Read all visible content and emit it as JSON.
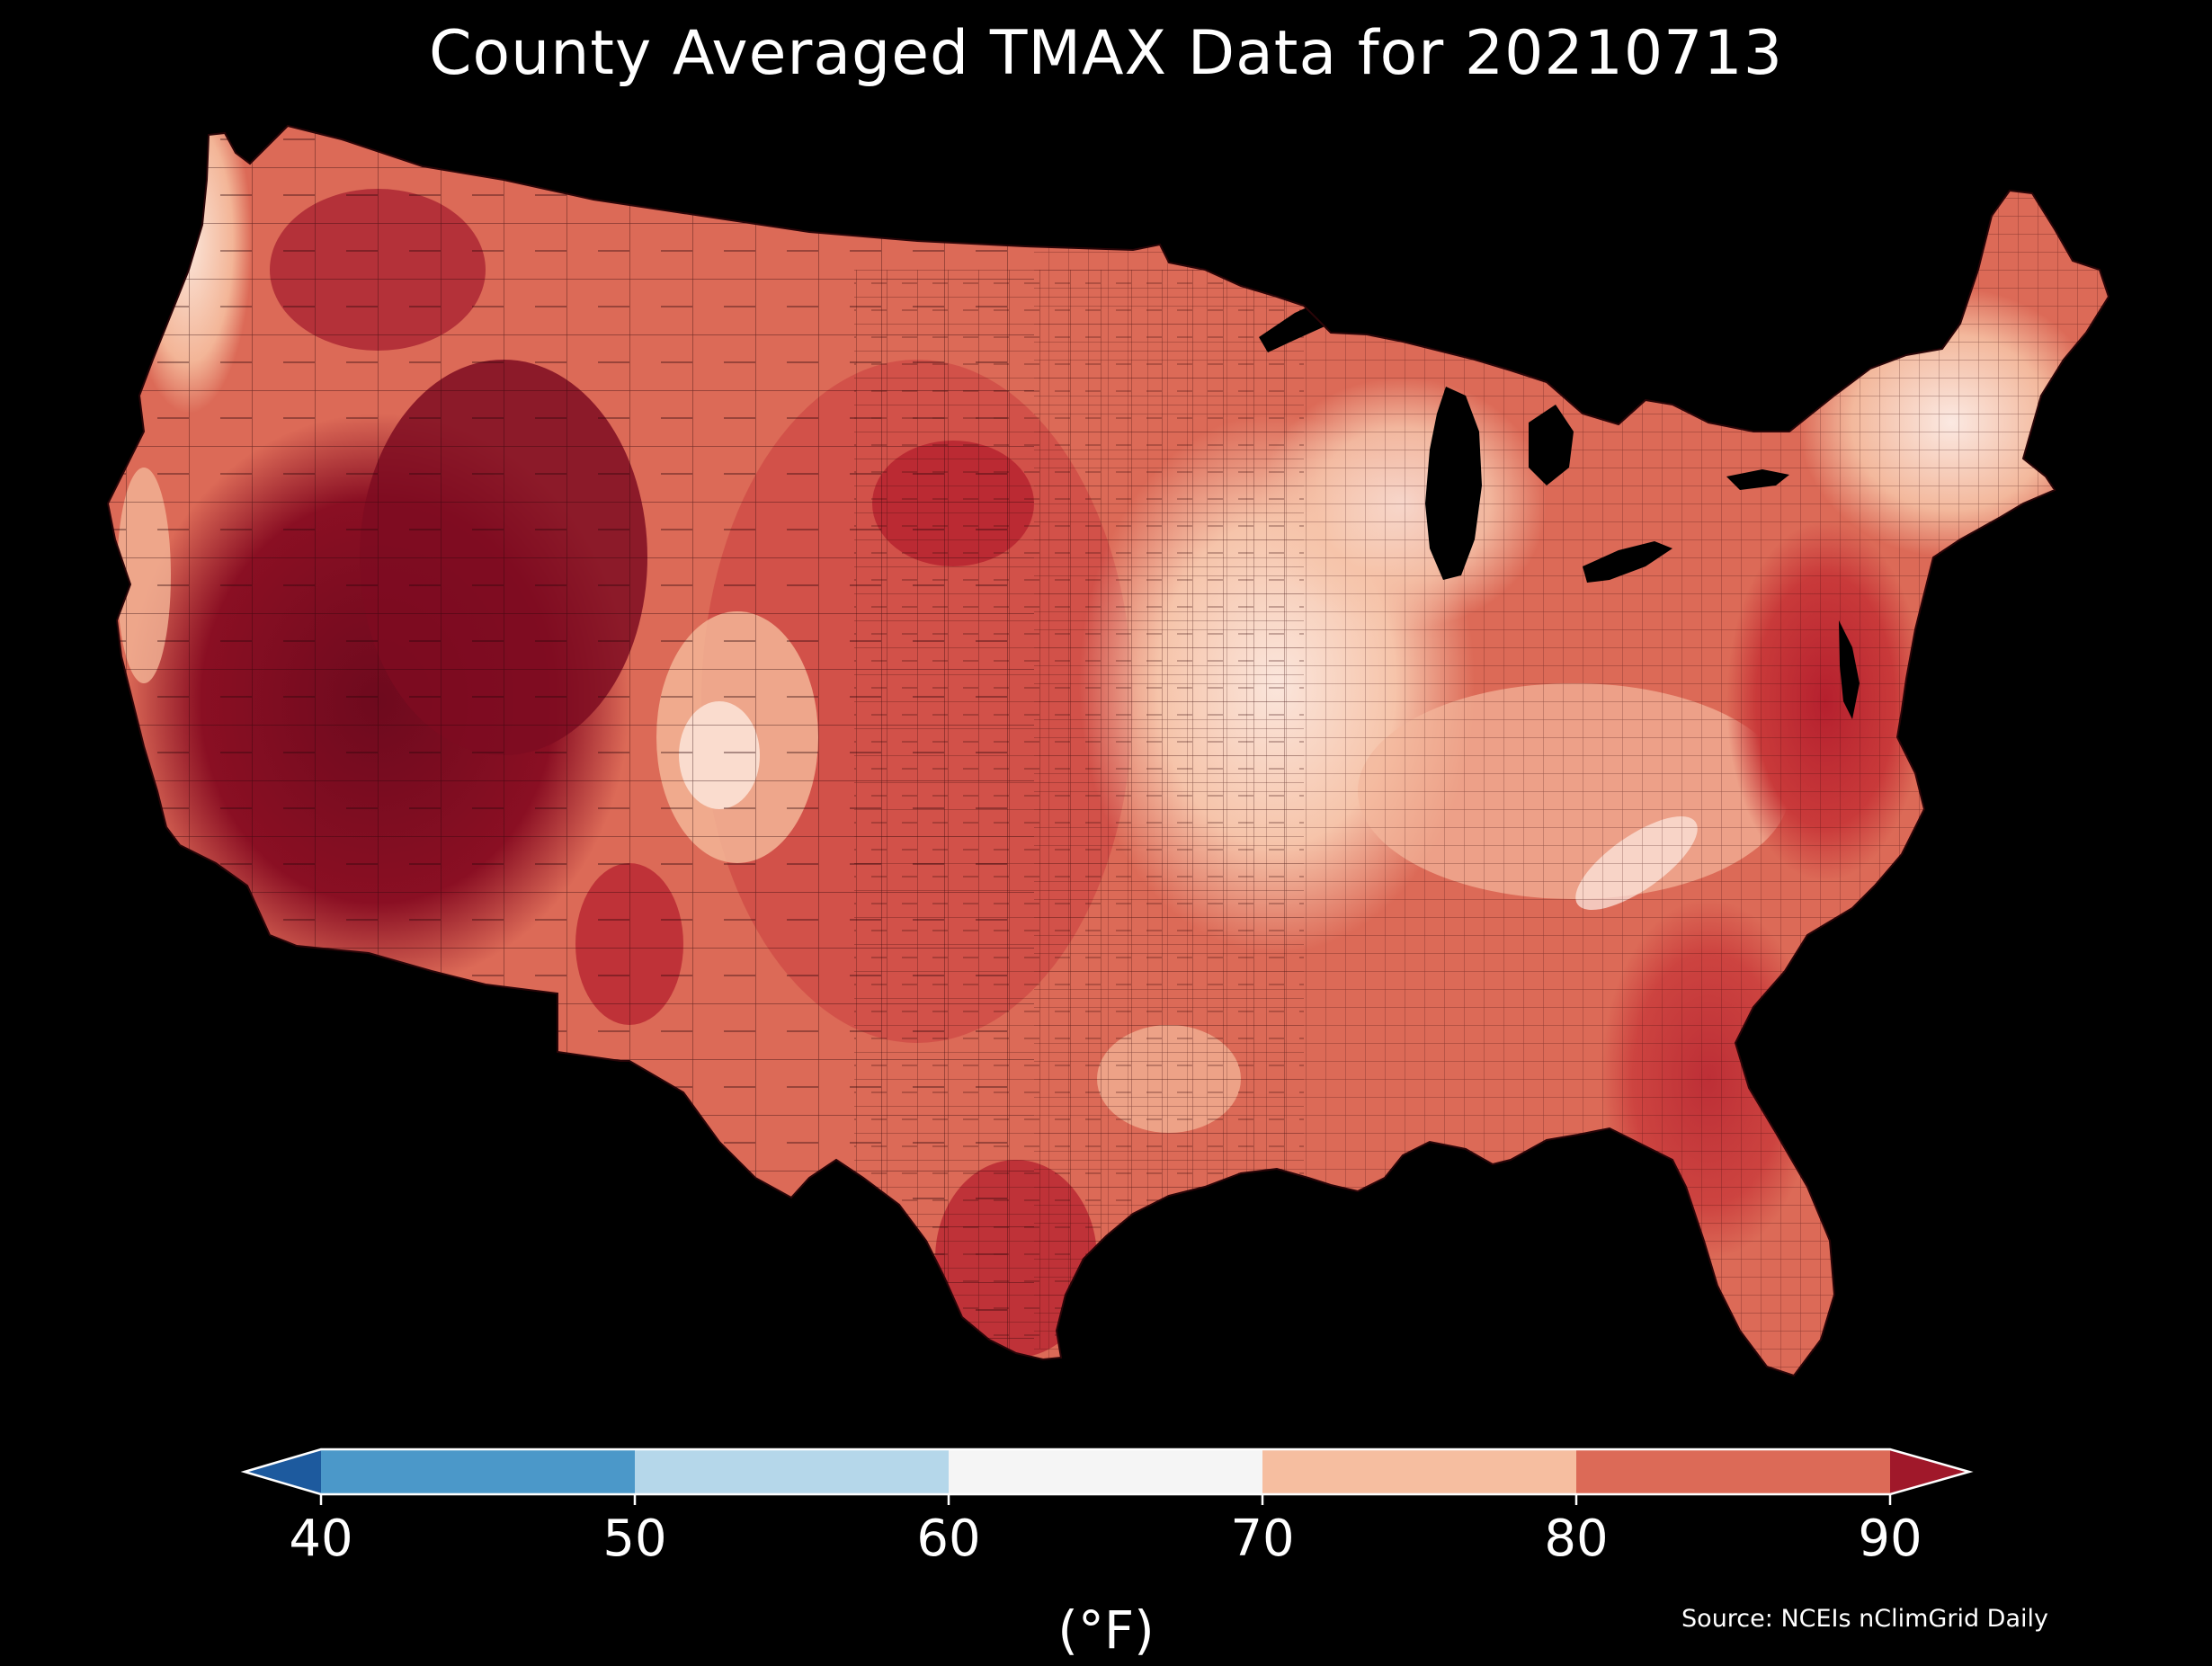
{
  "map": {
    "title": "County Averaged TMAX Data for 20210713",
    "region": "Contiguous United States",
    "background_color": "#000000",
    "county_border_color": "#3a0a0a"
  },
  "legend": {
    "type": "colorbar",
    "orientation": "horizontal",
    "extend": "both",
    "unit": "(°F)",
    "ticks": [
      "40",
      "50",
      "60",
      "70",
      "80",
      "90"
    ],
    "bins": [
      {
        "range": "below 40",
        "color": "#1d5a9e"
      },
      {
        "range": "40-50",
        "color": "#4b98c9"
      },
      {
        "range": "50-60",
        "color": "#b5d7ea"
      },
      {
        "range": "60-70",
        "color": "#f5f5f5"
      },
      {
        "range": "70-80",
        "color": "#f6bea0"
      },
      {
        "range": "80-90",
        "color": "#dc6a57"
      },
      {
        "range": "above 90",
        "color": "#a0182a"
      }
    ]
  },
  "source": "Source: NCEIs nClimGrid Daily"
}
